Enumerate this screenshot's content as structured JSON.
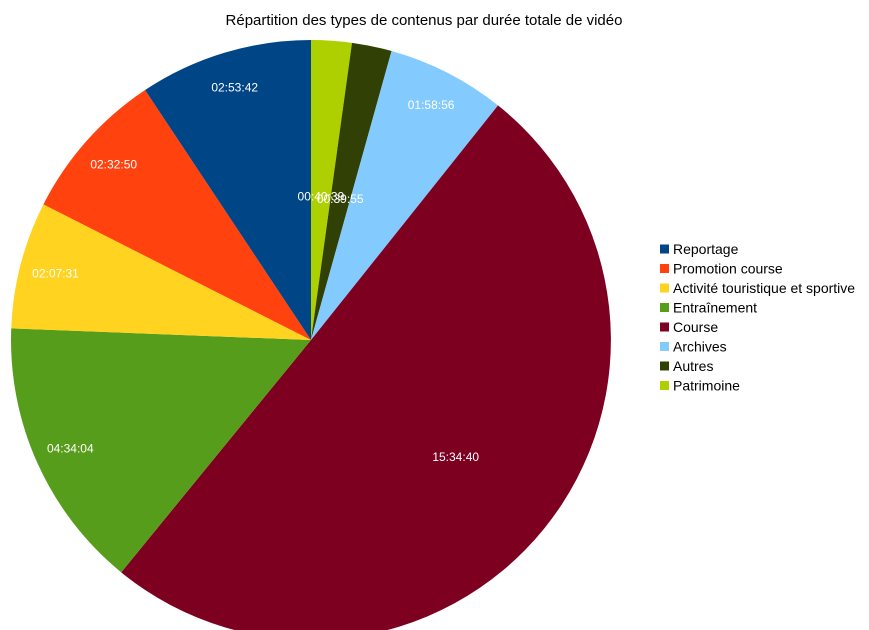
{
  "chart_data": {
    "type": "pie",
    "title": "Répartition des types de contenus par durée totale de vidéo",
    "start_angle_deg": 0,
    "direction": "clockwise",
    "legend_position": "right",
    "slices": [
      {
        "label": "Patrimoine",
        "value": 2439,
        "value_label": "00:40:39",
        "color": "#aecf00"
      },
      {
        "label": "Autres",
        "value": 2395,
        "value_label": "00:39:55",
        "color": "#314004"
      },
      {
        "label": "Archives",
        "value": 7136,
        "value_label": "01:58:56",
        "color": "#83caff"
      },
      {
        "label": "Course",
        "value": 56080,
        "value_label": "15:34:40",
        "color": "#7e0021"
      },
      {
        "label": "Entraînement",
        "value": 16444,
        "value_label": "04:34:04",
        "color": "#579d1c"
      },
      {
        "label": "Activité touristique et sportive",
        "value": 7651,
        "value_label": "02:07:31",
        "color": "#ffd320"
      },
      {
        "label": "Promotion course",
        "value": 9170,
        "value_label": "02:32:50",
        "color": "#ff420e"
      },
      {
        "label": "Reportage",
        "value": 10422,
        "value_label": "02:53:42",
        "color": "#004586"
      }
    ],
    "legend_order": [
      "Reportage",
      "Promotion course",
      "Activité touristique et sportive",
      "Entraînement",
      "Course",
      "Archives",
      "Autres",
      "Patrimoine"
    ]
  }
}
